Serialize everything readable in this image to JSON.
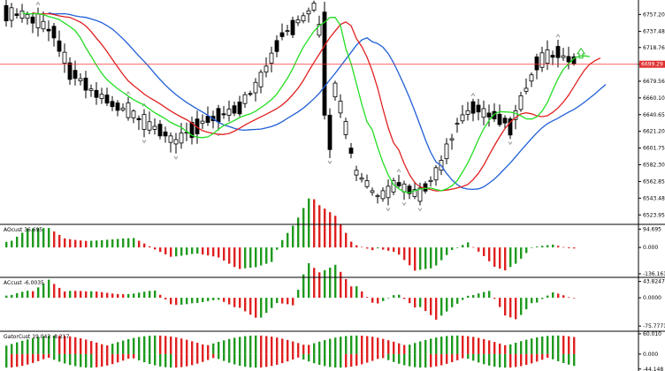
{
  "chart_data": {
    "type": "candlestick",
    "symbol_pane": {
      "ylim": [
        6515,
        6772
      ],
      "ticks": [
        "6757.20",
        "6737.48",
        "6718.76",
        "6699.29",
        "6679.56",
        "6660.10",
        "6640.65",
        "6621.20",
        "6601.75",
        "6582.30",
        "6562.85",
        "6543.48",
        "6523.95"
      ],
      "current_price": "6699.29",
      "current_price_value": 6699.29,
      "colors": {
        "up": "#000000",
        "down": "#000000",
        "price_line": "#ff3030",
        "price_tag": "#e03030",
        "jaw": "#1f5fd6",
        "teeth": "#e02020",
        "lips": "#22dd22",
        "fractal": "#9a9a9a",
        "arrow": "#22bb22"
      }
    },
    "ao_pane": {
      "label": "AOcust 36.695",
      "ticks": [
        "94.695",
        "0.000",
        "-136.161"
      ],
      "ylim": [
        -150,
        110
      ]
    },
    "ac_pane": {
      "label": "ACcust -6.0035",
      "ticks": [
        "43.8247",
        "0.0000",
        "-75.7771"
      ],
      "ylim": [
        -85,
        50
      ]
    },
    "gator_pane": {
      "label": "GatorCust 19.043 -8.217",
      "ticks": [
        "60.010",
        "0.000",
        "-44.148"
      ],
      "ylim": [
        -50,
        65
      ]
    },
    "colors": {
      "bar_up": "#1e9a1e",
      "bar_down": "#e02020",
      "axis": "#000000"
    }
  }
}
